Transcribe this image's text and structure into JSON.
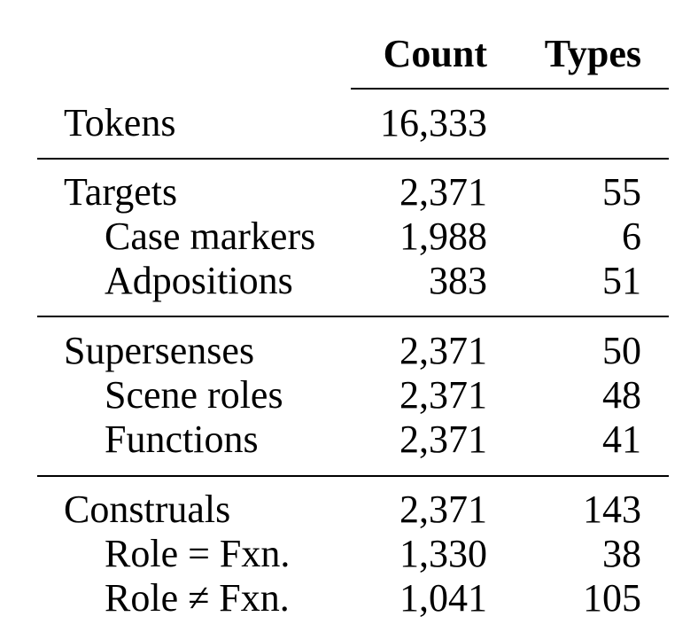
{
  "table": {
    "header": {
      "count": "Count",
      "types": "Types"
    },
    "tokens": {
      "label": "Tokens",
      "count": "16,333",
      "types": ""
    },
    "groups": [
      {
        "rows": [
          {
            "label": "Targets",
            "count": "2,371",
            "types": "55"
          },
          {
            "label": "Case markers",
            "count": "1,988",
            "types": "6"
          },
          {
            "label": "Adpositions",
            "count": "383",
            "types": "51"
          }
        ]
      },
      {
        "rows": [
          {
            "label": "Supersenses",
            "count": "2,371",
            "types": "50"
          },
          {
            "label": "Scene roles",
            "count": "2,371",
            "types": "48"
          },
          {
            "label": "Functions",
            "count": "2,371",
            "types": "41"
          }
        ]
      },
      {
        "rows": [
          {
            "label": "Construals",
            "count": "2,371",
            "types": "143"
          },
          {
            "label": "Role = Fxn.",
            "count": "1,330",
            "types": "38"
          },
          {
            "label": "Role ≠ Fxn.",
            "count": "1,041",
            "types": "105"
          }
        ]
      }
    ]
  }
}
